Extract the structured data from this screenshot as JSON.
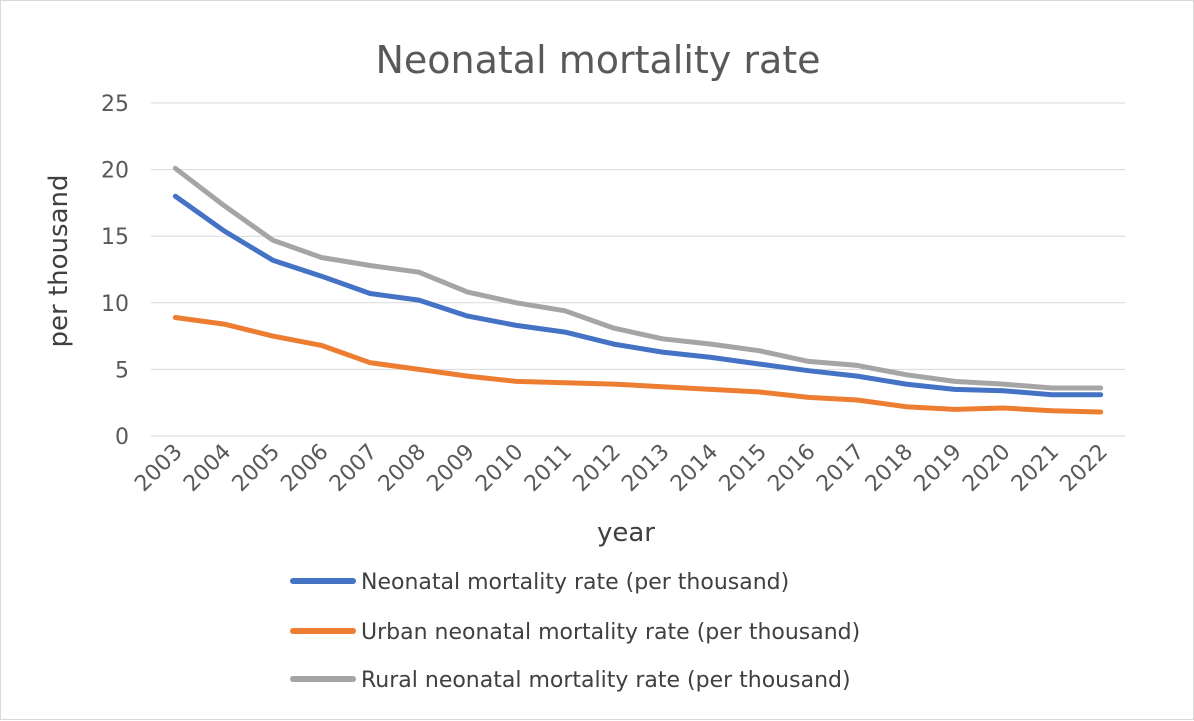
{
  "chart_data": {
    "type": "line",
    "title": "Neonatal mortality rate",
    "xlabel": "year",
    "ylabel": "per thousand",
    "ylim": [
      0,
      25
    ],
    "yticks": [
      0,
      5,
      10,
      15,
      20,
      25
    ],
    "grid": true,
    "legend_position": "bottom",
    "categories": [
      "2003",
      "2004",
      "2005",
      "2006",
      "2007",
      "2008",
      "2009",
      "2010",
      "2011",
      "2012",
      "2013",
      "2014",
      "2015",
      "2016",
      "2017",
      "2018",
      "2019",
      "2020",
      "2021",
      "2022"
    ],
    "series": [
      {
        "name": "Neonatal mortality rate  (per thousand)",
        "color": "#4472C4",
        "values": [
          18.0,
          15.4,
          13.2,
          12.0,
          10.7,
          10.2,
          9.0,
          8.3,
          7.8,
          6.9,
          6.3,
          5.9,
          5.4,
          4.9,
          4.5,
          3.9,
          3.5,
          3.4,
          3.1,
          3.1
        ]
      },
      {
        "name": "Urban neonatal mortality rate (per thousand)",
        "color": "#ED7D31",
        "values": [
          8.9,
          8.4,
          7.5,
          6.8,
          5.5,
          5.0,
          4.5,
          4.1,
          4.0,
          3.9,
          3.7,
          3.5,
          3.3,
          2.9,
          2.7,
          2.2,
          2.0,
          2.1,
          1.9,
          1.8
        ]
      },
      {
        "name": "Rural neonatal mortality rate (per thousand)",
        "color": "#A5A5A5",
        "values": [
          20.1,
          17.3,
          14.7,
          13.4,
          12.8,
          12.3,
          10.8,
          10.0,
          9.4,
          8.1,
          7.3,
          6.9,
          6.4,
          5.6,
          5.3,
          4.6,
          4.1,
          3.9,
          3.6,
          3.6
        ]
      }
    ]
  }
}
